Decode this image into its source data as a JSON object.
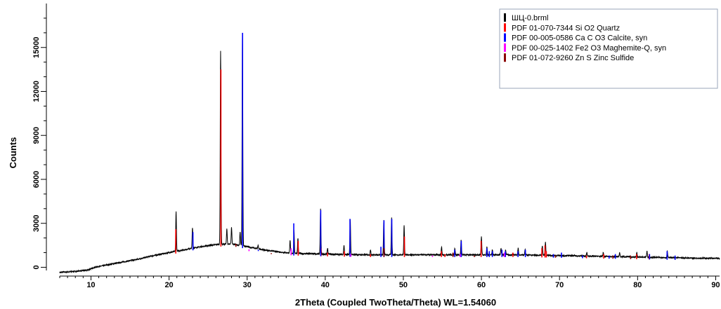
{
  "chart_data": {
    "type": "line",
    "xlabel": "2Theta (Coupled TwoTheta/Theta) WL=1.54060",
    "ylabel": "Counts",
    "xlim": [
      6,
      90.5
    ],
    "ylim": [
      -600,
      18000
    ],
    "x_ticks": [
      10,
      20,
      30,
      40,
      50,
      60,
      70,
      80,
      90
    ],
    "y_ticks": [
      0,
      3000,
      6000,
      9000,
      12000,
      15000
    ],
    "grid": false,
    "legend_position": "top-right",
    "measured": {
      "name": "ШЦ-0.brml",
      "color": "#000000",
      "background": [
        [
          6,
          -350
        ],
        [
          8,
          -280
        ],
        [
          9.5,
          -200
        ],
        [
          10.5,
          0
        ],
        [
          12,
          150
        ],
        [
          14,
          350
        ],
        [
          16,
          550
        ],
        [
          18,
          800
        ],
        [
          20,
          1000
        ],
        [
          22,
          1200
        ],
        [
          24,
          1400
        ],
        [
          26,
          1550
        ],
        [
          28,
          1600
        ],
        [
          30,
          1400
        ],
        [
          32,
          1200
        ],
        [
          34,
          1050
        ],
        [
          36,
          950
        ],
        [
          40,
          900
        ],
        [
          45,
          850
        ],
        [
          50,
          850
        ],
        [
          55,
          850
        ],
        [
          60,
          850
        ],
        [
          65,
          850
        ],
        [
          70,
          800
        ],
        [
          75,
          750
        ],
        [
          80,
          700
        ],
        [
          85,
          650
        ],
        [
          90.5,
          600
        ]
      ],
      "peaks": [
        [
          20.9,
          3800
        ],
        [
          23.0,
          2700
        ],
        [
          26.6,
          14800
        ],
        [
          27.4,
          2600
        ],
        [
          28.0,
          2700
        ],
        [
          29.1,
          2400
        ],
        [
          29.4,
          16000
        ],
        [
          31.4,
          1500
        ],
        [
          35.5,
          1800
        ],
        [
          36.0,
          2500
        ],
        [
          36.5,
          2000
        ],
        [
          39.4,
          4000
        ],
        [
          40.3,
          1300
        ],
        [
          42.4,
          1500
        ],
        [
          43.2,
          3300
        ],
        [
          45.8,
          1200
        ],
        [
          47.5,
          3200
        ],
        [
          48.5,
          3400
        ],
        [
          50.1,
          2900
        ],
        [
          54.9,
          1400
        ],
        [
          56.6,
          1300
        ],
        [
          57.4,
          1900
        ],
        [
          60.0,
          2100
        ],
        [
          60.7,
          1400
        ],
        [
          61.4,
          1200
        ],
        [
          62.5,
          1300
        ],
        [
          63.1,
          1200
        ],
        [
          64.7,
          1300
        ],
        [
          65.6,
          1200
        ],
        [
          67.8,
          1500
        ],
        [
          68.2,
          1700
        ],
        [
          73.5,
          1000
        ],
        [
          75.6,
          1000
        ],
        [
          77.7,
          1000
        ],
        [
          79.9,
          1000
        ],
        [
          81.2,
          1100
        ],
        [
          83.8,
          1100
        ]
      ]
    },
    "reference_patterns": [
      {
        "name": "PDF 01-070-7344 Si O2 Quartz",
        "color": "#ff0000",
        "peaks": [
          [
            20.86,
            2600
          ],
          [
            26.64,
            13500
          ],
          [
            36.54,
            1800
          ],
          [
            39.46,
            1300
          ],
          [
            40.29,
            1000
          ],
          [
            42.45,
            1100
          ],
          [
            45.79,
            900
          ],
          [
            50.14,
            2100
          ],
          [
            54.87,
            1100
          ],
          [
            55.33,
            900
          ],
          [
            59.96,
            1800
          ],
          [
            64.03,
            1000
          ],
          [
            67.74,
            1300
          ],
          [
            68.14,
            1500
          ],
          [
            68.31,
            1100
          ],
          [
            73.46,
            800
          ],
          [
            75.66,
            900
          ],
          [
            79.88,
            900
          ],
          [
            81.49,
            900
          ]
        ]
      },
      {
        "name": "PDF 00-005-0586 Ca C O3 Calcite, syn",
        "color": "#0000ff",
        "peaks": [
          [
            23.06,
            2400
          ],
          [
            29.41,
            16000
          ],
          [
            31.43,
            1200
          ],
          [
            35.97,
            3000
          ],
          [
            39.42,
            3900
          ],
          [
            43.17,
            3300
          ],
          [
            47.13,
            1400
          ],
          [
            47.52,
            3200
          ],
          [
            48.52,
            3300
          ],
          [
            56.58,
            1200
          ],
          [
            57.42,
            1800
          ],
          [
            60.7,
            1300
          ],
          [
            61.01,
            1100
          ],
          [
            61.4,
            1100
          ],
          [
            62.63,
            1200
          ],
          [
            63.07,
            1100
          ],
          [
            64.68,
            1100
          ],
          [
            65.63,
            1200
          ],
          [
            69.22,
            900
          ],
          [
            70.25,
            1000
          ],
          [
            72.95,
            800
          ],
          [
            76.35,
            800
          ],
          [
            77.15,
            900
          ],
          [
            81.53,
            900
          ],
          [
            83.78,
            1100
          ],
          [
            84.8,
            800
          ]
        ]
      },
      {
        "name": "PDF 00-025-1402 Fe2 O3 Maghemite-Q, syn",
        "color": "#ff00ff",
        "peaks": [
          [
            30.24,
            1100
          ],
          [
            35.63,
            1300
          ],
          [
            43.28,
            900
          ],
          [
            53.73,
            800
          ],
          [
            57.27,
            900
          ],
          [
            62.93,
            1000
          ]
        ]
      },
      {
        "name": "PDF 01-072-9260 Zn S Zinc Sulfide",
        "color": "#8b0000",
        "peaks": [
          [
            28.56,
            1600
          ],
          [
            33.09,
            900
          ],
          [
            47.52,
            1300
          ],
          [
            56.36,
            1000
          ],
          [
            59.1,
            800
          ],
          [
            69.48,
            800
          ],
          [
            76.84,
            800
          ],
          [
            79.1,
            800
          ]
        ]
      }
    ]
  }
}
